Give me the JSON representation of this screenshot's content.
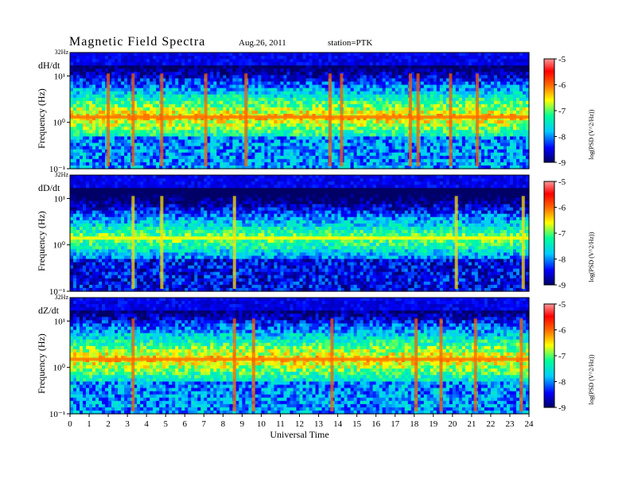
{
  "header": {
    "title": "Magnetic  Field  Spectra",
    "date": "Aug.26, 2011",
    "station": "station=PTK"
  },
  "chart_data": [
    {
      "type": "heatmap",
      "panel_label": "dH/dt",
      "ylabel": "Frequency  (Hz)",
      "y_top_label": "32Hz",
      "y_ticks": [
        "10¹",
        "10⁰",
        "10⁻¹"
      ],
      "ylim": [
        0.1,
        32
      ],
      "xlim": [
        0,
        24
      ],
      "colorbar_label": "log(PSD (V^2/Hz))",
      "colorbar_ticks": [
        "-5",
        "-6",
        "-7",
        "-8",
        "-9"
      ],
      "colorbar_range": [
        -9,
        -5
      ],
      "dominant_band_hz": 1.3,
      "dominant_level": -6.5,
      "background_level": -8,
      "burst_hours": [
        2.0,
        3.3,
        4.8,
        7.1,
        9.2,
        13.6,
        14.2,
        17.8,
        18.2,
        19.9,
        21.3
      ]
    },
    {
      "type": "heatmap",
      "panel_label": "dD/dt",
      "ylabel": "Frequency  (Hz)",
      "y_top_label": "32Hz",
      "y_ticks": [
        "10¹",
        "10⁰",
        "10⁻¹"
      ],
      "ylim": [
        0.1,
        32
      ],
      "xlim": [
        0,
        24
      ],
      "colorbar_label": "log(PSD (V^2/Hz))",
      "colorbar_ticks": [
        "-5",
        "-6",
        "-7",
        "-8",
        "-9"
      ],
      "colorbar_range": [
        -9,
        -5
      ],
      "dominant_band_hz": 1.4,
      "dominant_level": -7,
      "background_level": -8.5,
      "burst_hours": [
        3.3,
        4.8,
        8.6,
        20.2,
        23.7
      ]
    },
    {
      "type": "heatmap",
      "panel_label": "dZ/dt",
      "ylabel": "Frequency  (Hz)",
      "y_top_label": "32Hz",
      "y_ticks": [
        "10¹",
        "10⁰",
        "10⁻¹"
      ],
      "ylim": [
        0.1,
        32
      ],
      "xlim": [
        0,
        24
      ],
      "colorbar_label": "log(PSD (V^2/Hz))",
      "colorbar_ticks": [
        "-5",
        "-6",
        "-7",
        "-8",
        "-9"
      ],
      "colorbar_range": [
        -9,
        -5
      ],
      "dominant_band_hz": 1.5,
      "dominant_level": -6.5,
      "background_level": -8,
      "burst_hours": [
        3.3,
        8.6,
        9.6,
        13.7,
        18.1,
        19.4,
        21.2,
        23.6
      ]
    }
  ],
  "x_axis": {
    "label": "Universal Time",
    "ticks": [
      "0",
      "1",
      "2",
      "3",
      "4",
      "5",
      "6",
      "7",
      "8",
      "9",
      "10",
      "11",
      "12",
      "13",
      "14",
      "15",
      "16",
      "17",
      "18",
      "19",
      "20",
      "21",
      "22",
      "23",
      "24"
    ]
  },
  "colormap": [
    "#000066",
    "#0000ff",
    "#00ccff",
    "#00ff99",
    "#ffff00",
    "#ff6600",
    "#ff0000",
    "#ff9999"
  ]
}
